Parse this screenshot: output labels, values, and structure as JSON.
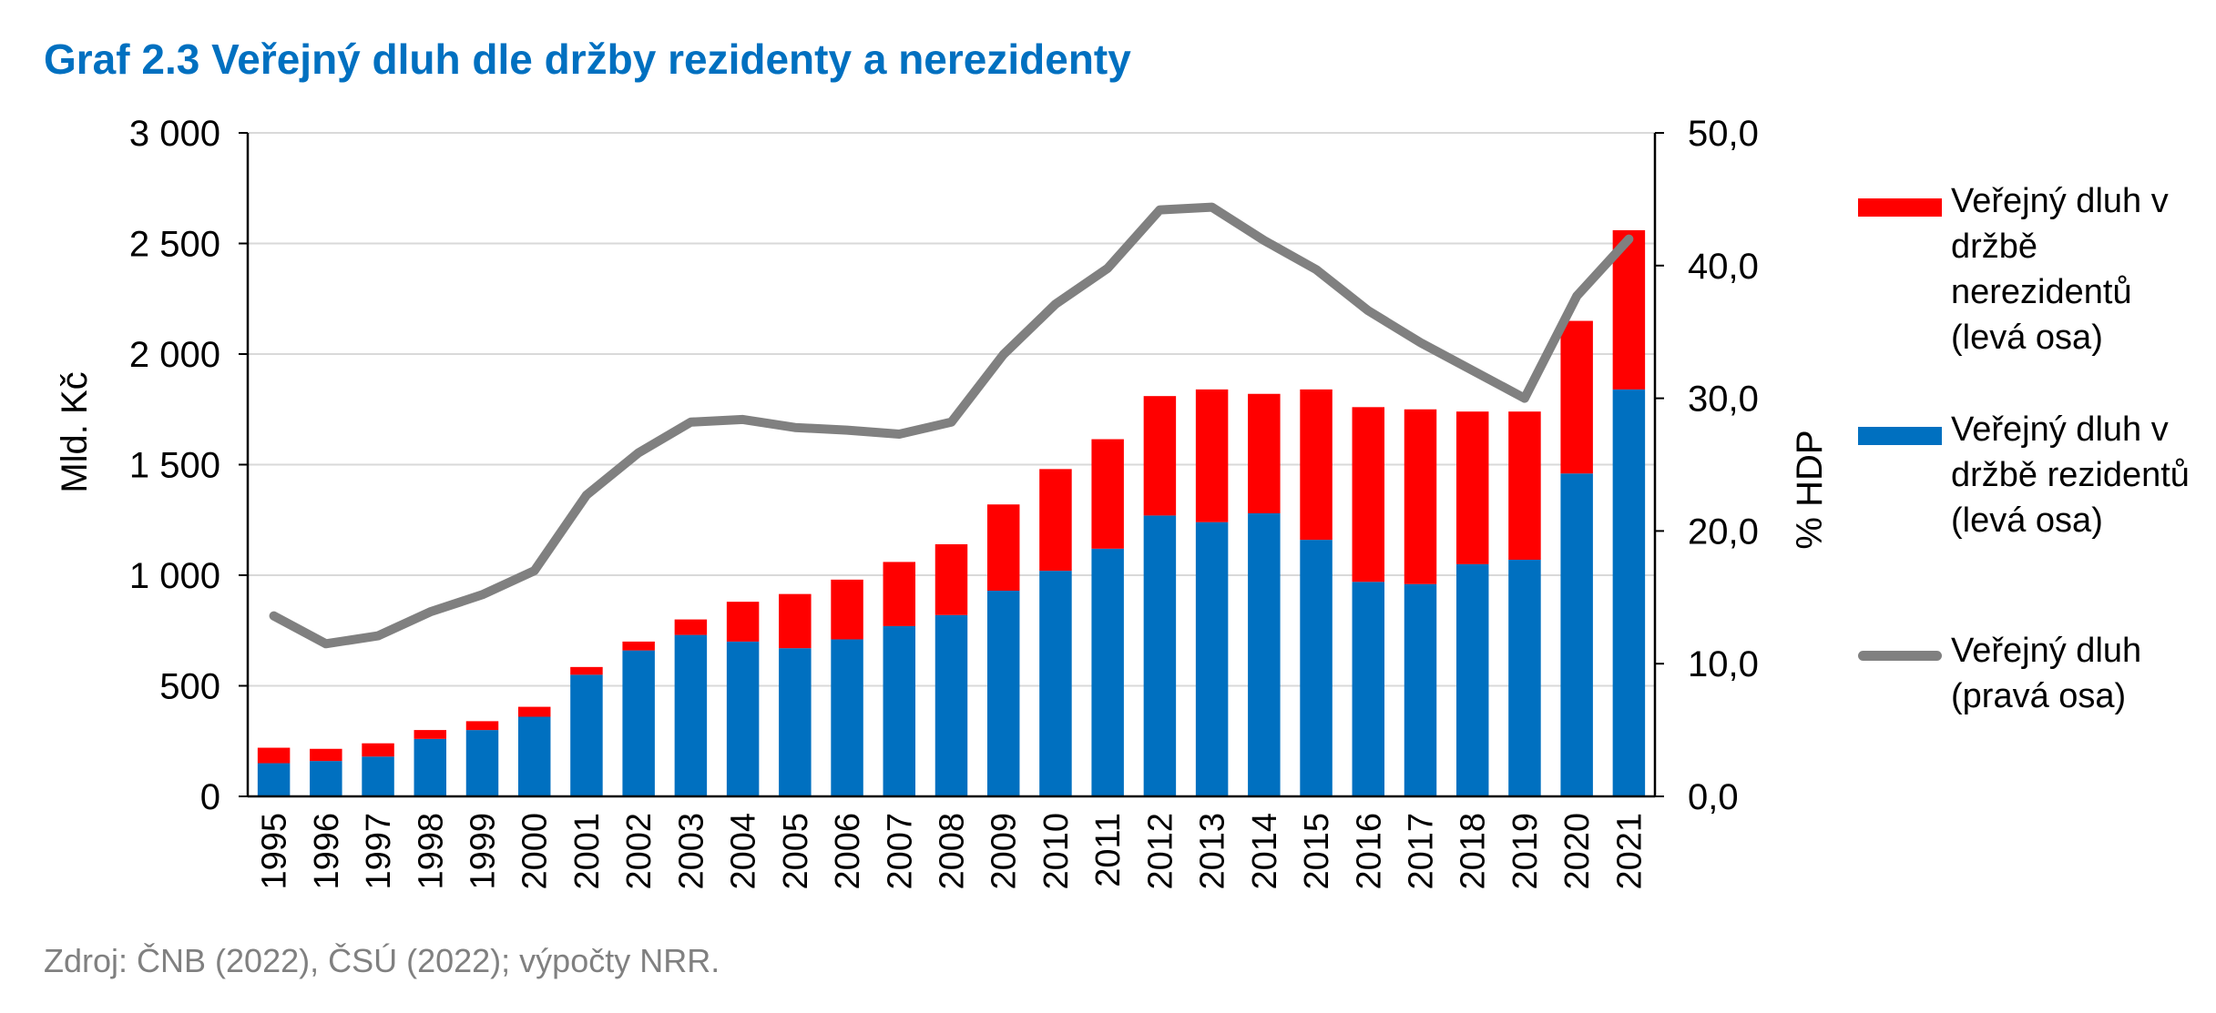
{
  "title": "Graf 2.3 Veřejný dluh dle držby rezidenty a nerezidenty",
  "source": "Zdroj: ČNB (2022), ČSÚ (2022); výpočty NRR.",
  "colors": {
    "title": "#0070C0",
    "nonresident": "#FF0000",
    "resident": "#0070C0",
    "line": "#808080",
    "grid": "#D9D9D9",
    "source": "#808080"
  },
  "legend": {
    "nonresident": "Veřejný dluh v držbě nerezidentů (levá osa)",
    "resident": "Veřejný dluh v držbě rezidentů (levá osa)",
    "line": "Veřejný dluh (pravá osa)"
  },
  "chart_data": {
    "type": "bar",
    "stacked": true,
    "categories": [
      "1995",
      "1996",
      "1997",
      "1998",
      "1999",
      "2000",
      "2001",
      "2002",
      "2003",
      "2004",
      "2005",
      "2006",
      "2007",
      "2008",
      "2009",
      "2010",
      "2011",
      "2012",
      "2013",
      "2014",
      "2015",
      "2016",
      "2017",
      "2018",
      "2019",
      "2020",
      "2021"
    ],
    "series": [
      {
        "name": "Veřejný dluh v držbě rezidentů (levá osa)",
        "axis": "left",
        "kind": "bar",
        "values": [
          150,
          160,
          180,
          260,
          300,
          360,
          550,
          660,
          730,
          700,
          670,
          710,
          770,
          820,
          930,
          1020,
          1120,
          1270,
          1240,
          1280,
          1160,
          970,
          960,
          1050,
          1070,
          1460,
          1840
        ]
      },
      {
        "name": "Veřejný dluh v držbě nerezidentů (levá osa)",
        "axis": "left",
        "kind": "bar",
        "values": [
          70,
          55,
          60,
          40,
          40,
          45,
          35,
          40,
          70,
          180,
          245,
          270,
          290,
          320,
          390,
          460,
          495,
          540,
          600,
          540,
          680,
          790,
          790,
          690,
          670,
          690,
          720
        ]
      },
      {
        "name": "Veřejný dluh (pravá osa)",
        "axis": "right",
        "kind": "line",
        "values": [
          13.6,
          11.5,
          12.1,
          13.9,
          15.2,
          17.0,
          22.7,
          25.9,
          28.2,
          28.4,
          27.8,
          27.6,
          27.3,
          28.2,
          33.3,
          37.1,
          39.8,
          44.2,
          44.4,
          41.9,
          39.7,
          36.6,
          34.2,
          32.1,
          30.0,
          37.7,
          42.0
        ]
      }
    ],
    "title": "Graf 2.3 Veřejný dluh dle držby rezidenty a nerezidenty",
    "ylabel": "Mld. Kč",
    "y2label": "% HDP",
    "ylim": [
      0,
      3000
    ],
    "y2lim": [
      0,
      50
    ],
    "yticks": [
      "0",
      "500",
      "1 000",
      "1 500",
      "2 000",
      "2 500",
      "3 000"
    ],
    "y2ticks": [
      "0,0",
      "10,0",
      "20,0",
      "30,0",
      "40,0",
      "50,0"
    ],
    "grid": true,
    "legend_position": "right"
  }
}
